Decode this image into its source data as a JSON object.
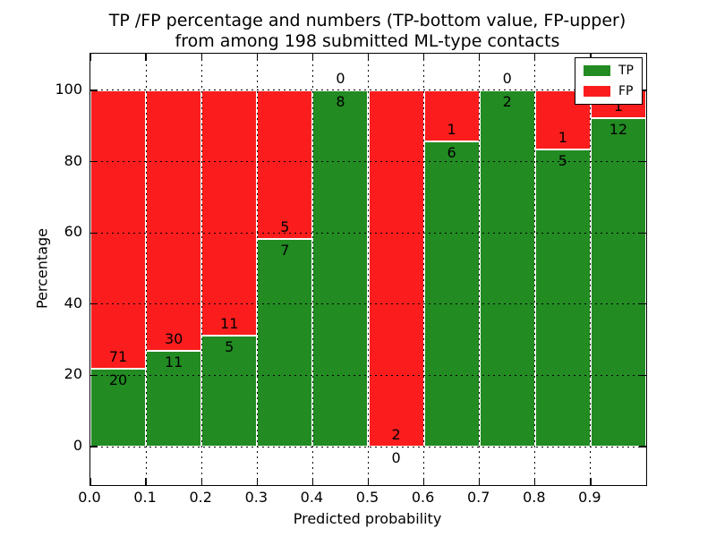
{
  "chart_data": {
    "type": "bar",
    "stacked": true,
    "orientation": "vertical",
    "title": "TP /FP percentage and numbers (TP-bottom value, FP-upper)\nfrom among 198 submitted ML-type contacts",
    "title_lines": [
      "TP /FP percentage and numbers (TP-bottom value, FP-upper)",
      "from among 198 submitted ML-type contacts"
    ],
    "xlabel": "Predicted probability",
    "ylabel": "Percentage",
    "total_contacts": 198,
    "xlim": [
      0.0,
      1.0
    ],
    "ylim": [
      -10.8,
      110.3
    ],
    "grid": "dotted, on",
    "legend_position": "upper right",
    "xticks": [
      0.0,
      0.1,
      0.2,
      0.3,
      0.4,
      0.5,
      0.6,
      0.7,
      0.8,
      0.9
    ],
    "xtick_labels": [
      "0.0",
      "0.1",
      "0.2",
      "0.3",
      "0.4",
      "0.5",
      "0.6",
      "0.7",
      "0.8",
      "0.9"
    ],
    "xgridlines": [
      0.1,
      0.2,
      0.3,
      0.4,
      0.5,
      0.6,
      0.7,
      0.8,
      0.9
    ],
    "yticks": [
      0,
      20,
      40,
      60,
      80,
      100
    ],
    "ytick_labels": [
      "0",
      "20",
      "40",
      "60",
      "80",
      "100"
    ],
    "series": [
      {
        "name": "TP",
        "color": "#228b22",
        "counts": [
          20,
          11,
          5,
          7,
          8,
          0,
          6,
          2,
          5,
          12
        ]
      },
      {
        "name": "FP",
        "color": "#fb1d1d",
        "counts": [
          71,
          30,
          11,
          5,
          0,
          2,
          1,
          0,
          1,
          1
        ]
      }
    ],
    "bins": [
      {
        "range": [
          0.0,
          0.1
        ],
        "tp": 20,
        "fp": 71,
        "tp_percent": 21.98,
        "fp_percent": 78.02
      },
      {
        "range": [
          0.1,
          0.2
        ],
        "tp": 11,
        "fp": 30,
        "tp_percent": 26.83,
        "fp_percent": 73.17
      },
      {
        "range": [
          0.2,
          0.3
        ],
        "tp": 5,
        "fp": 11,
        "tp_percent": 31.25,
        "fp_percent": 68.75
      },
      {
        "range": [
          0.3,
          0.4
        ],
        "tp": 7,
        "fp": 5,
        "tp_percent": 58.33,
        "fp_percent": 41.67
      },
      {
        "range": [
          0.4,
          0.5
        ],
        "tp": 8,
        "fp": 0,
        "tp_percent": 100.0,
        "fp_percent": 0.0
      },
      {
        "range": [
          0.5,
          0.6
        ],
        "tp": 0,
        "fp": 2,
        "tp_percent": 0.0,
        "fp_percent": 100.0
      },
      {
        "range": [
          0.6,
          0.7
        ],
        "tp": 6,
        "fp": 1,
        "tp_percent": 85.71,
        "fp_percent": 14.29
      },
      {
        "range": [
          0.7,
          0.8
        ],
        "tp": 2,
        "fp": 0,
        "tp_percent": 100.0,
        "fp_percent": 0.0
      },
      {
        "range": [
          0.8,
          0.9
        ],
        "tp": 5,
        "fp": 1,
        "tp_percent": 83.33,
        "fp_percent": 16.67
      },
      {
        "range": [
          0.9,
          1.0
        ],
        "tp": 12,
        "fp": 1,
        "tp_percent": 92.31,
        "fp_percent": 7.69
      }
    ],
    "colors": {
      "tp": "#228b22",
      "fp": "#fb1d1d",
      "grid": "#000000",
      "text": "#000000",
      "background": "#ffffff",
      "spine": "#000000"
    },
    "legend": {
      "entries": [
        {
          "label": "TP",
          "color": "#228b22"
        },
        {
          "label": "FP",
          "color": "#fb1d1d"
        }
      ]
    }
  }
}
